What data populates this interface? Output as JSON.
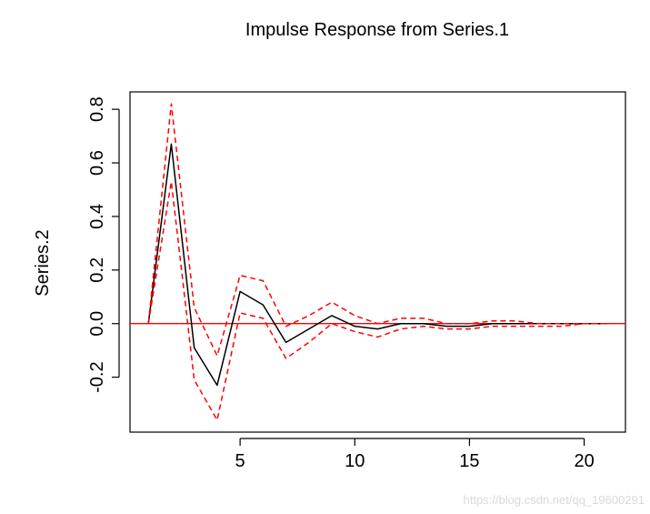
{
  "chart_data": {
    "type": "line",
    "title": "Impulse Response from Series.1",
    "xlabel": "",
    "ylabel": "Series.2",
    "xlim": [
      0.2,
      21.8
    ],
    "ylim": [
      -0.405,
      0.865
    ],
    "x_ticks": [
      5,
      10,
      15,
      20
    ],
    "y_ticks": [
      -0.2,
      0.0,
      0.2,
      0.4,
      0.6,
      0.8
    ],
    "y_tick_labels": [
      "-0.2",
      "0.0",
      "0.2",
      "0.4",
      "0.6",
      "0.8"
    ],
    "x_tick_labels": [
      "5",
      "10",
      "15",
      "20"
    ],
    "x": [
      1,
      2,
      3,
      4,
      5,
      6,
      7,
      8,
      9,
      10,
      11,
      12,
      13,
      14,
      15,
      16,
      17,
      18,
      19,
      20,
      21
    ],
    "series": [
      {
        "role": "response",
        "color": "#000000",
        "style": "solid",
        "values": [
          0.0,
          0.67,
          -0.09,
          -0.23,
          0.12,
          0.07,
          -0.07,
          -0.02,
          0.03,
          -0.01,
          -0.02,
          0.0,
          0.0,
          -0.01,
          -0.01,
          0.0,
          0.0,
          0.0,
          0.0,
          0.0,
          0.0
        ]
      },
      {
        "role": "upper",
        "color": "#ff0000",
        "style": "dashed",
        "values": [
          0.0,
          0.82,
          0.06,
          -0.12,
          0.18,
          0.16,
          -0.01,
          0.03,
          0.08,
          0.03,
          0.0,
          0.02,
          0.02,
          0.0,
          0.0,
          0.01,
          0.01,
          0.0,
          0.0,
          0.0,
          0.0
        ]
      },
      {
        "role": "lower",
        "color": "#ff0000",
        "style": "dashed",
        "values": [
          0.0,
          0.53,
          -0.21,
          -0.36,
          0.04,
          0.02,
          -0.13,
          -0.07,
          0.0,
          -0.03,
          -0.05,
          -0.02,
          -0.01,
          -0.02,
          -0.02,
          -0.01,
          -0.01,
          -0.01,
          -0.01,
          0.0,
          0.0
        ]
      }
    ],
    "reference_line": {
      "y": 0,
      "color": "#ff0000"
    },
    "grid": false,
    "legend": "none"
  },
  "watermark": "https://blog.csdn.net/qq_19600291"
}
